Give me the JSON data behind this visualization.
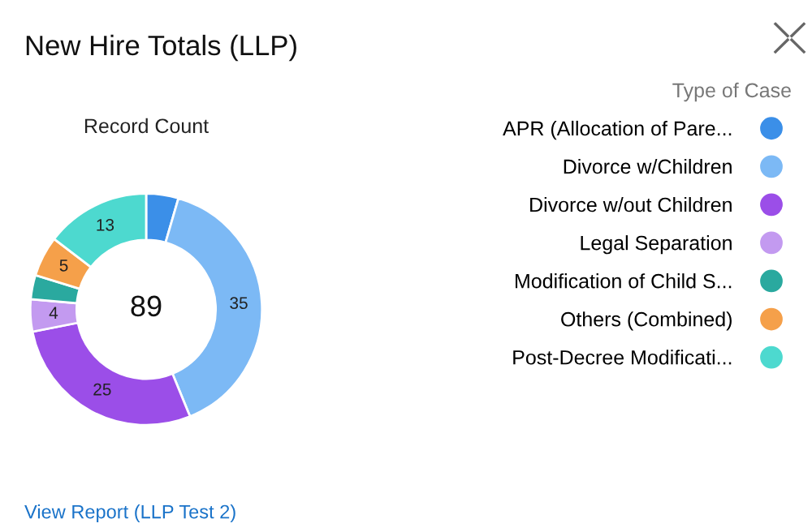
{
  "chart_data": {
    "type": "donut",
    "title": "New Hire Totals (LLP)",
    "legend_title": "Type of Case",
    "categories": [
      "APR (Allocation of Pare...",
      "Divorce w/Children",
      "Divorce w/out Children",
      "Legal Separation",
      "Modification of Child S...",
      "Others (Combined)",
      "Post-Decree Modificati..."
    ],
    "values": [
      4,
      35,
      25,
      4,
      3,
      5,
      13
    ],
    "colors": [
      "#3b8fe8",
      "#7cb9f5",
      "#9b4ee8",
      "#c39af0",
      "#2aa99f",
      "#f5a04a",
      "#4dd9cf"
    ],
    "value_labels": [
      null,
      "35",
      "25",
      "4",
      null,
      "5",
      "13"
    ],
    "annotations": [
      "Record Count",
      "89",
      "View Report (LLP Test 2)"
    ],
    "legend": "right"
  }
}
